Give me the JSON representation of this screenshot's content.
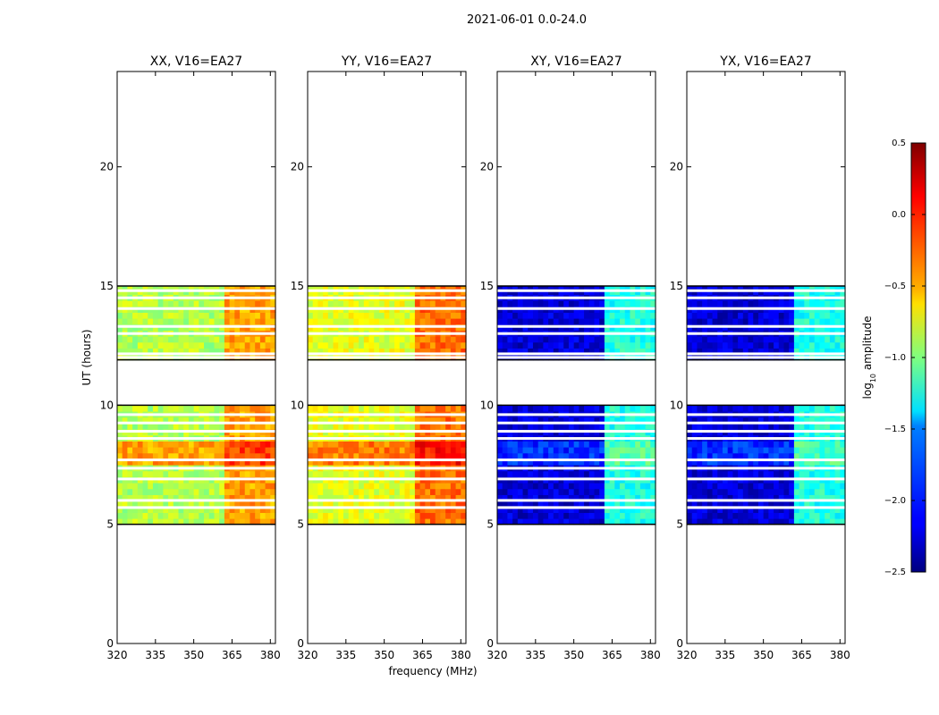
{
  "figure": {
    "suptitle": "2021-06-01 0.0-24.0"
  },
  "chart_data": {
    "type": "heatmap",
    "xlabel": "frequency (MHz)",
    "ylabel": "UT (hours)",
    "xlim": [
      320,
      382
    ],
    "ylim": [
      0,
      24
    ],
    "xticks": [
      320,
      335,
      350,
      365,
      380
    ],
    "xtick_labels": [
      "320",
      "335",
      "350",
      "365",
      "380"
    ],
    "yticks": [
      0,
      5,
      10,
      15,
      20
    ],
    "ytick_labels": [
      "0",
      "5",
      "10",
      "15",
      "20"
    ],
    "data_hour_ranges": [
      [
        5.0,
        10.0
      ],
      [
        11.9,
        15.0
      ]
    ],
    "flagged_hours": [
      5.7,
      6.0,
      6.9,
      7.35,
      7.7,
      8.6,
      8.9,
      9.25,
      9.6,
      12.0,
      12.15,
      13.0,
      13.3,
      14.05,
      14.5,
      14.8
    ],
    "bright_band_mhz": [
      362,
      382
    ],
    "panels": [
      {
        "title": "XX, V16=EA27",
        "base_level": -0.85,
        "band_level": -0.35,
        "mid_hours_level": -0.35,
        "mid_hours": [
          7.5,
          8.6
        ]
      },
      {
        "title": "YY, V16=EA27",
        "base_level": -0.7,
        "band_level": -0.2,
        "mid_hours_level": -0.25,
        "mid_hours": [
          7.5,
          8.6
        ]
      },
      {
        "title": "XY, V16=EA27",
        "base_level": -2.25,
        "band_level": -1.3,
        "mid_hours_level": -2.0,
        "mid_hours": [
          7.5,
          8.6
        ]
      },
      {
        "title": "YX, V16=EA27",
        "base_level": -2.25,
        "band_level": -1.3,
        "mid_hours_level": -2.0,
        "mid_hours": [
          7.5,
          8.6
        ]
      }
    ],
    "colorbar": {
      "label": "log10 amplitude",
      "label_main": "log",
      "label_sub": "10",
      "label_rest": " amplitude",
      "range": [
        -2.5,
        0.5
      ],
      "colormap": "jet",
      "ticks": [
        0.5,
        0.0,
        -0.5,
        -1.0,
        -1.5,
        -2.0,
        -2.5
      ],
      "tick_labels": [
        "0.5",
        "0.0",
        "−0.5",
        "−1.0",
        "−1.5",
        "−2.0",
        "−2.5"
      ]
    }
  }
}
